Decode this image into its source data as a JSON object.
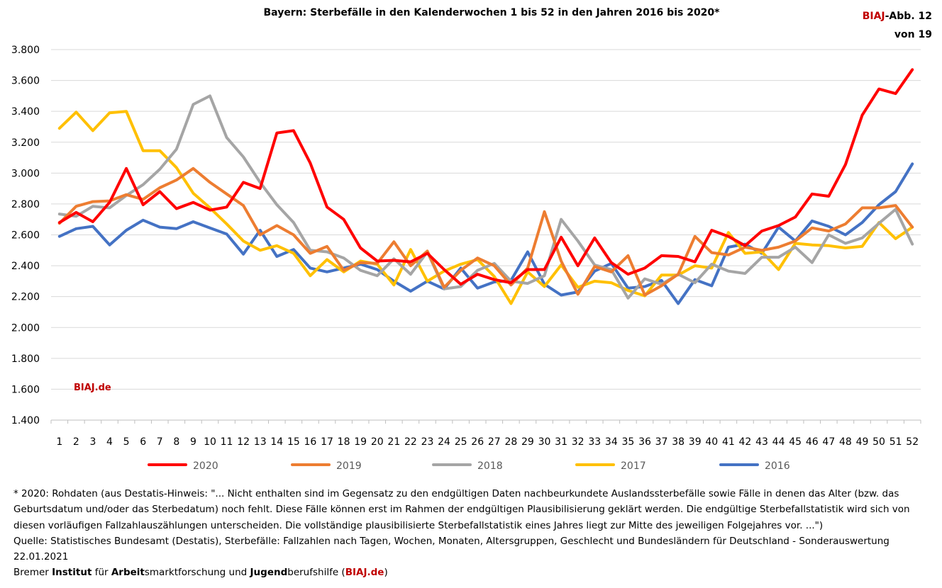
{
  "chart_data": {
    "type": "line",
    "title": "Bayern: Sterbefälle in den Kalenderwochen 1 bis 52 in den Jahren 2016 bis 2020*",
    "xlabel": "",
    "ylabel": "",
    "x": [
      1,
      2,
      3,
      4,
      5,
      6,
      7,
      8,
      9,
      10,
      11,
      12,
      13,
      14,
      15,
      16,
      17,
      18,
      19,
      20,
      21,
      22,
      23,
      24,
      25,
      26,
      27,
      28,
      29,
      30,
      31,
      32,
      33,
      34,
      35,
      36,
      37,
      38,
      39,
      40,
      41,
      42,
      43,
      44,
      45,
      46,
      47,
      48,
      49,
      50,
      51,
      52
    ],
    "ylim": [
      1400,
      3800
    ],
    "yticks": [
      1400,
      1600,
      1800,
      2000,
      2200,
      2400,
      2600,
      2800,
      3000,
      3200,
      3400,
      3600,
      3800
    ],
    "ytick_labels": [
      "1.400",
      "1.600",
      "1.800",
      "2.000",
      "2.200",
      "2.400",
      "2.600",
      "2.800",
      "3.000",
      "3.200",
      "3.400",
      "3.600",
      "3.800"
    ],
    "grid": true,
    "legend_position": "bottom",
    "series": [
      {
        "name": "2020",
        "color": "#ff0000",
        "values": [
          2680,
          2745,
          2685,
          2810,
          3030,
          2795,
          2880,
          2770,
          2810,
          2760,
          2780,
          2940,
          2900,
          3260,
          3275,
          3065,
          2780,
          2700,
          2515,
          2430,
          2435,
          2425,
          2480,
          2375,
          2280,
          2345,
          2310,
          2290,
          2375,
          2375,
          2585,
          2400,
          2580,
          2420,
          2345,
          2385,
          2465,
          2460,
          2425,
          2630,
          2590,
          2530,
          2625,
          2660,
          2715,
          2865,
          2850,
          3055,
          3375,
          3545,
          3515,
          3670
        ]
      },
      {
        "name": "2019",
        "color": "#ed7d31",
        "values": [
          2675,
          2785,
          2815,
          2820,
          2860,
          2830,
          2905,
          2955,
          3030,
          2940,
          2865,
          2790,
          2600,
          2660,
          2600,
          2480,
          2525,
          2370,
          2420,
          2415,
          2555,
          2400,
          2495,
          2260,
          2370,
          2450,
          2400,
          2275,
          2385,
          2750,
          2430,
          2215,
          2395,
          2360,
          2465,
          2210,
          2270,
          2345,
          2590,
          2485,
          2470,
          2520,
          2500,
          2520,
          2560,
          2645,
          2625,
          2670,
          2775,
          2775,
          2790,
          2650
        ]
      },
      {
        "name": "2018",
        "color": "#a5a5a5",
        "values": [
          2735,
          2720,
          2785,
          2775,
          2855,
          2925,
          3025,
          3155,
          3445,
          3500,
          3230,
          3105,
          2940,
          2795,
          2680,
          2500,
          2490,
          2450,
          2370,
          2335,
          2445,
          2345,
          2490,
          2250,
          2265,
          2370,
          2415,
          2300,
          2285,
          2335,
          2700,
          2560,
          2405,
          2375,
          2190,
          2315,
          2280,
          2345,
          2290,
          2410,
          2365,
          2350,
          2455,
          2455,
          2520,
          2420,
          2600,
          2545,
          2580,
          2675,
          2765,
          2540
        ]
      },
      {
        "name": "2017",
        "color": "#ffc000",
        "values": [
          3290,
          3395,
          3275,
          3390,
          3400,
          3145,
          3145,
          3035,
          2870,
          2775,
          2670,
          2560,
          2500,
          2530,
          2480,
          2335,
          2440,
          2360,
          2430,
          2410,
          2275,
          2505,
          2300,
          2365,
          2410,
          2440,
          2330,
          2155,
          2360,
          2265,
          2405,
          2260,
          2300,
          2290,
          2240,
          2205,
          2340,
          2340,
          2400,
          2385,
          2615,
          2480,
          2490,
          2375,
          2545,
          2535,
          2530,
          2515,
          2525,
          2680,
          2575,
          2650
        ]
      },
      {
        "name": "2016",
        "color": "#4472c4",
        "values": [
          2590,
          2640,
          2655,
          2535,
          2630,
          2695,
          2650,
          2640,
          2685,
          2645,
          2605,
          2475,
          2630,
          2460,
          2505,
          2385,
          2360,
          2385,
          2410,
          2375,
          2300,
          2235,
          2300,
          2250,
          2385,
          2255,
          2295,
          2305,
          2490,
          2280,
          2210,
          2230,
          2365,
          2415,
          2255,
          2265,
          2305,
          2155,
          2310,
          2270,
          2520,
          2540,
          2480,
          2650,
          2560,
          2690,
          2655,
          2600,
          2680,
          2795,
          2880,
          3060
        ]
      }
    ]
  },
  "header": {
    "badge_brand": "BIAJ",
    "badge_line1_rest": "-Abb. 12",
    "badge_line2": "von 19"
  },
  "watermark": "BIAJ.de",
  "footnotes": {
    "line1": "* 2020: Rohdaten (aus Destatis-Hinweis: \"... Nicht enthalten sind im Gegensatz zu den endgültigen Daten nachbeurkundete Auslandssterbefälle sowie Fälle in denen das Alter (bzw. das",
    "line2": "Geburtsdatum und/oder das Sterbedatum) noch fehlt. Diese Fälle können erst im Rahmen der endgültigen Plausibilisierung geklärt werden. Die endgültige Sterbefallstatistik wird sich von",
    "line3": "diesen vorläufigen Fallzahlauszählungen unterscheiden. Die vollständige plausibilisierte Sterbefallstatistik eines Jahres liegt zur Mitte des jeweiligen Folgejahres vor. ...\")",
    "source": "Quelle: Statistisches Bundesamt (Destatis), Sterbefälle: Fallzahlen nach Tagen, Wochen, Monaten, Altersgruppen, Geschlecht und Bundesländern für Deutschland - Sonderauswertung",
    "date": "22.01.2021",
    "credit_parts": [
      "Bremer ",
      "Institut",
      " für ",
      "Arbeit",
      "smarktforschung und ",
      "Jugend",
      "berufshilfe (",
      "BIAJ.de",
      ")"
    ]
  }
}
